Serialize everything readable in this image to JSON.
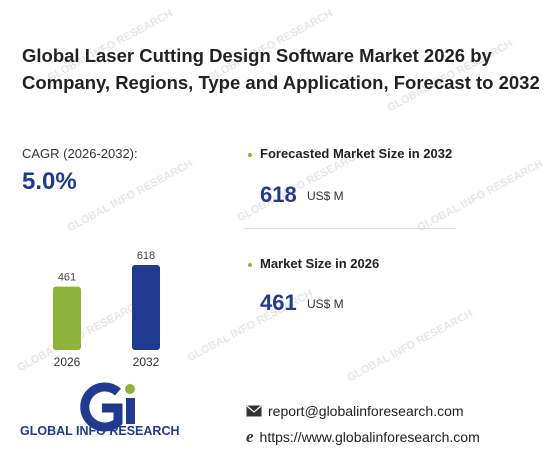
{
  "title": "Global Laser Cutting Design Software Market 2026 by Company, Regions, Type and Application, Forecast to 2032",
  "cagr": {
    "label": "CAGR (2026-2032):",
    "value": "5.0%"
  },
  "forecast": {
    "label": "Forecasted Market Size in 2032",
    "value": "618",
    "unit": "US$ M"
  },
  "current": {
    "label": "Market Size in 2026",
    "value": "461",
    "unit": "US$ M"
  },
  "chart_data": {
    "type": "bar",
    "categories": [
      "2026",
      "2032"
    ],
    "values": [
      461,
      618
    ],
    "colors": [
      "#8db33a",
      "#1f3a8f"
    ]
  },
  "brand": {
    "name": "GLOBAL INFO RESEARCH",
    "watermark": "GLOBAL INFO RESEARCH"
  },
  "contact": {
    "email": "report@globalinforesearch.com",
    "website": "https://www.globalinforesearch.com",
    "email_icon": "envelope-icon",
    "web_icon": "browser-e-icon"
  },
  "colors": {
    "accent_green": "#8db33a",
    "accent_blue": "#1f3a8f"
  }
}
